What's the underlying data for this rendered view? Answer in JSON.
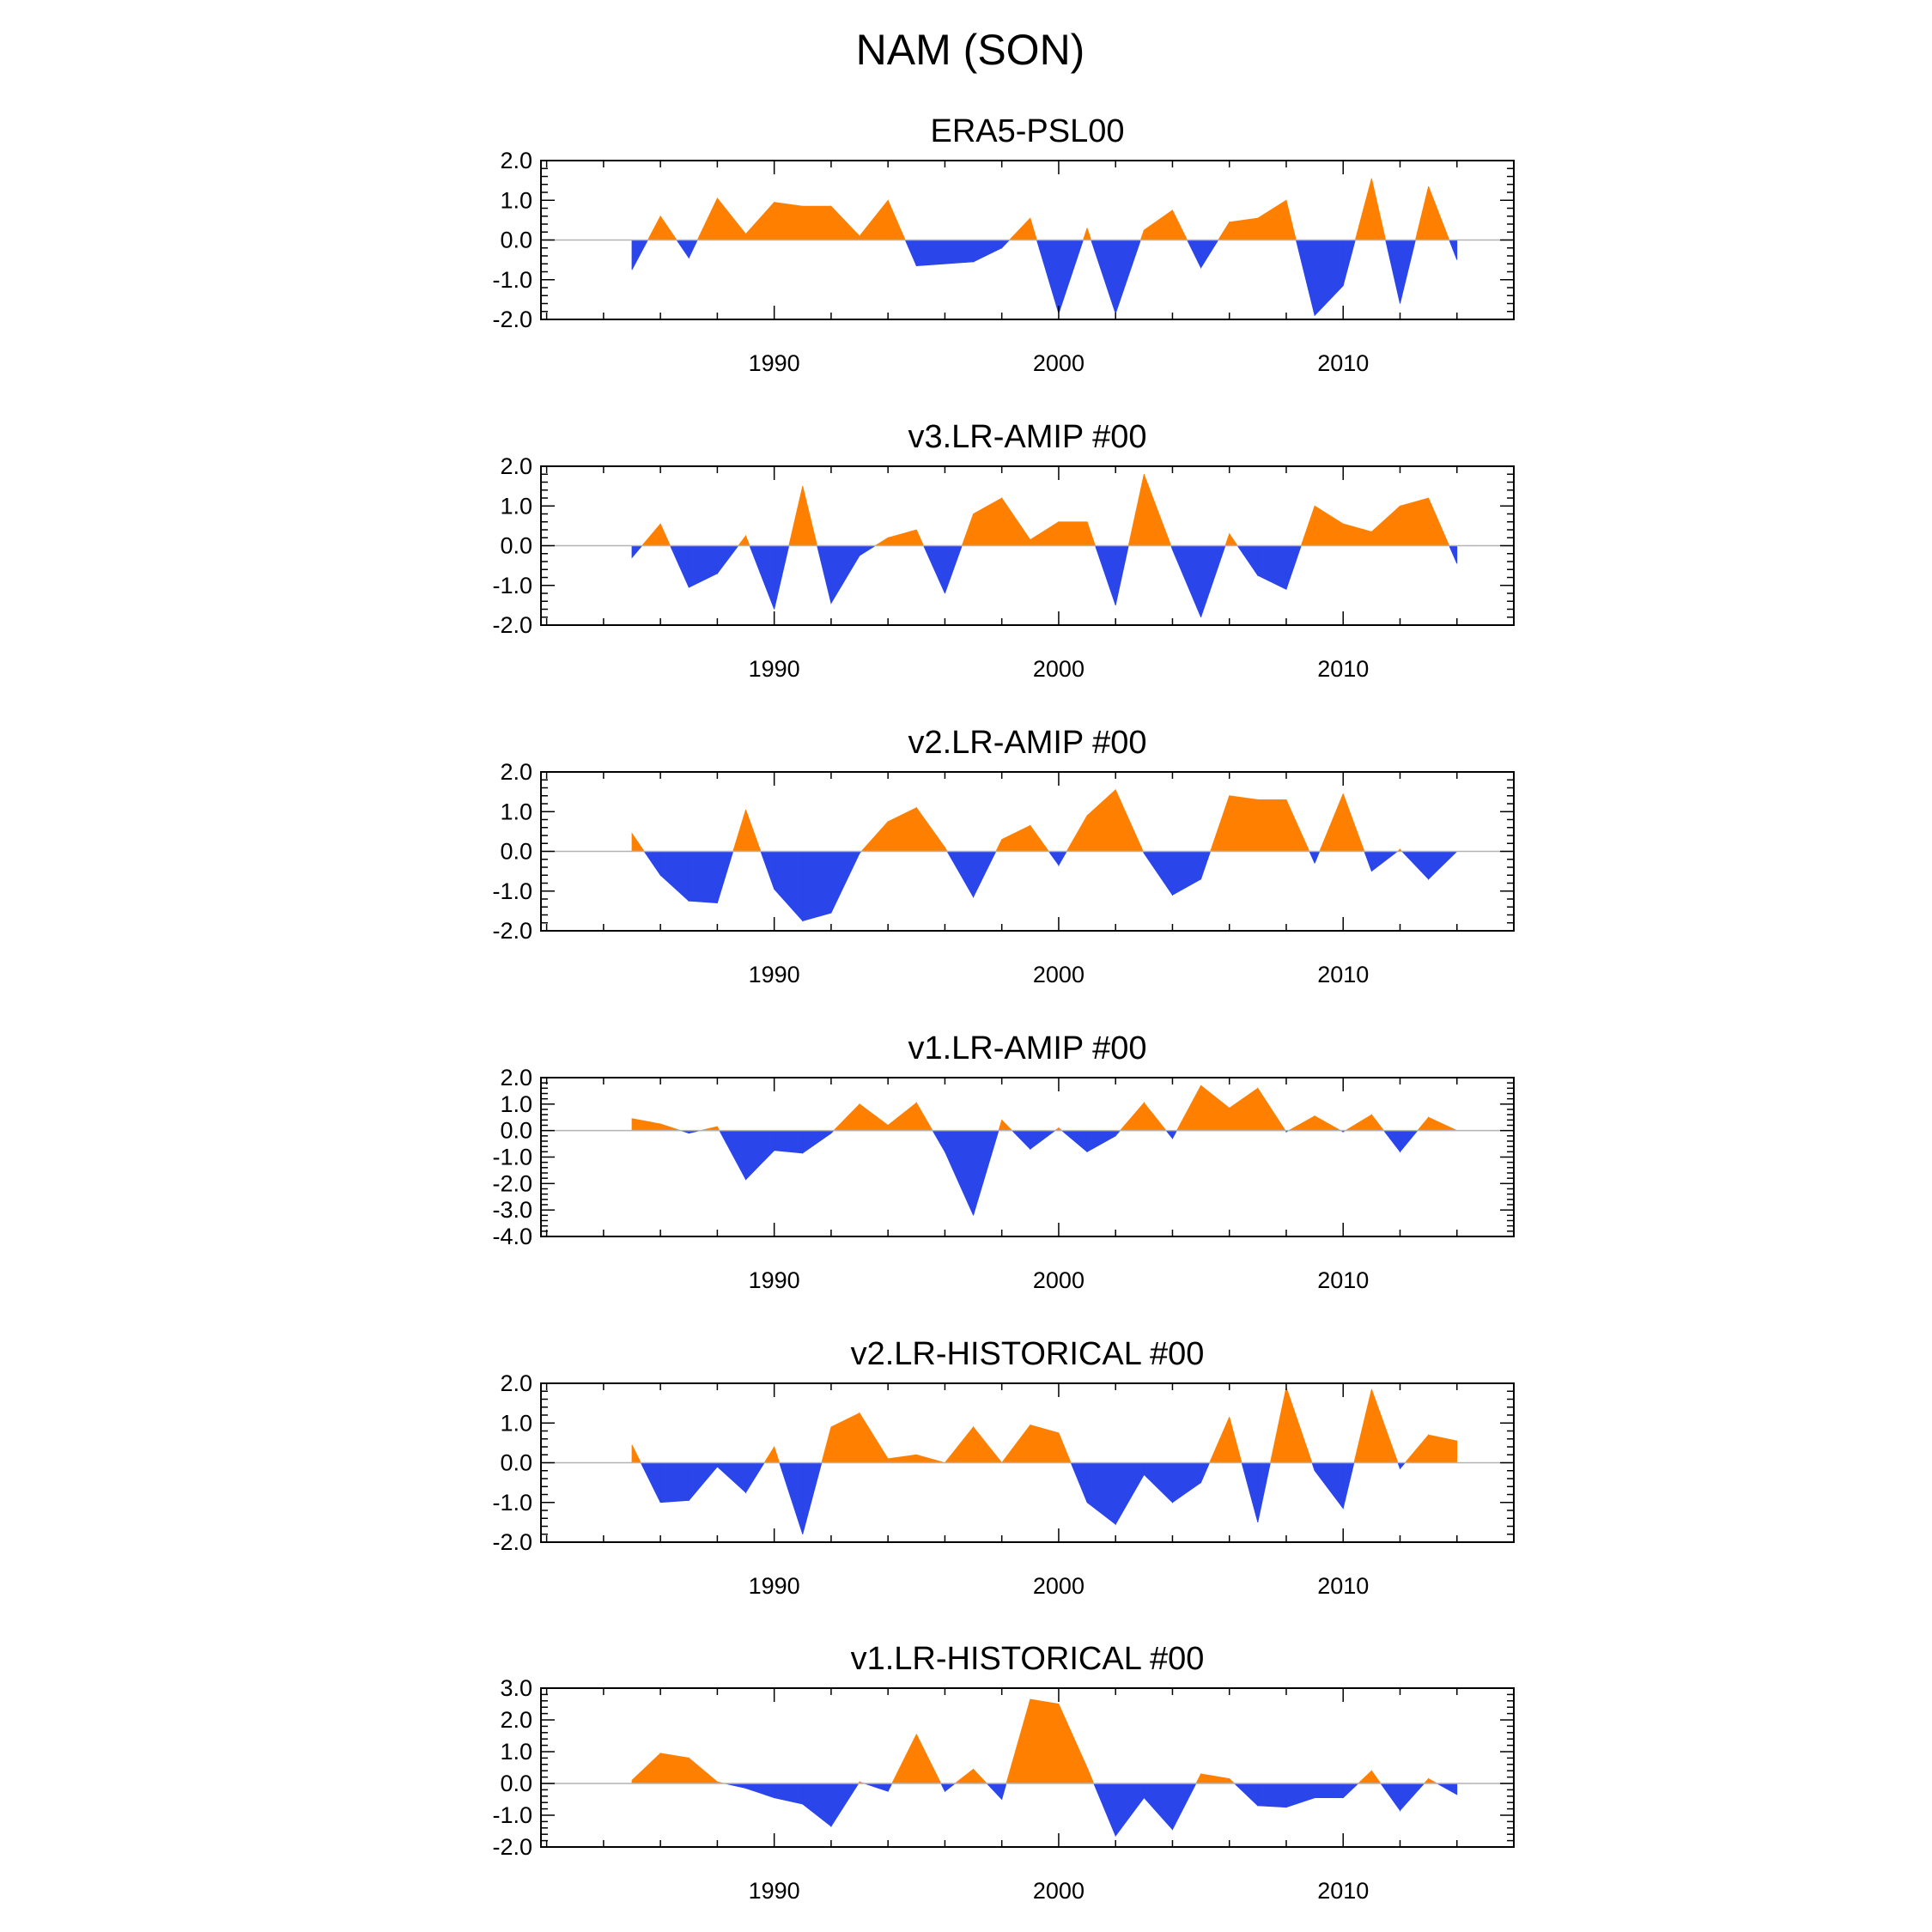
{
  "title": "NAM (SON)",
  "colors": {
    "positive": "#ff8000",
    "negative": "#2a45ea",
    "zero_line": "#b3b3b3"
  },
  "chart_data": [
    {
      "type": "area",
      "title": "ERA5-PSL00",
      "x": [
        1985,
        1986,
        1987,
        1988,
        1989,
        1990,
        1991,
        1992,
        1993,
        1994,
        1995,
        1996,
        1997,
        1998,
        1999,
        2000,
        2001,
        2002,
        2003,
        2004,
        2005,
        2006,
        2007,
        2008,
        2009,
        2010,
        2011,
        2012,
        2013,
        2014
      ],
      "values": [
        -0.75,
        0.6,
        -0.45,
        1.05,
        0.15,
        0.95,
        0.85,
        0.85,
        0.1,
        1.0,
        -0.65,
        -0.6,
        -0.55,
        -0.2,
        0.55,
        -1.85,
        0.3,
        -1.85,
        0.25,
        0.75,
        -0.7,
        0.45,
        0.55,
        1.0,
        -1.9,
        -1.15,
        1.55,
        -1.6,
        1.35,
        -0.5
      ],
      "ylim": [
        -2.0,
        2.0
      ],
      "yticks": [
        "-2.0",
        "-1.0",
        "0.0",
        "1.0",
        "2.0"
      ],
      "xticks": [
        "1990",
        "2000",
        "2010"
      ]
    },
    {
      "type": "area",
      "title": "v3.LR-AMIP  #00",
      "x": [
        1985,
        1986,
        1987,
        1988,
        1989,
        1990,
        1991,
        1992,
        1993,
        1994,
        1995,
        1996,
        1997,
        1998,
        1999,
        2000,
        2001,
        2002,
        2003,
        2004,
        2005,
        2006,
        2007,
        2008,
        2009,
        2010,
        2011,
        2012,
        2013,
        2014
      ],
      "values": [
        -0.3,
        0.55,
        -1.05,
        -0.7,
        0.25,
        -1.6,
        1.5,
        -1.45,
        -0.25,
        0.2,
        0.4,
        -1.2,
        0.8,
        1.2,
        0.15,
        0.6,
        0.6,
        -1.5,
        1.8,
        -0.1,
        -1.8,
        0.3,
        -0.75,
        -1.1,
        1.0,
        0.55,
        0.35,
        1.0,
        1.2,
        -0.45
      ],
      "ylim": [
        -2.0,
        2.0
      ],
      "yticks": [
        "-2.0",
        "-1.0",
        "0.0",
        "1.0",
        "2.0"
      ],
      "xticks": [
        "1990",
        "2000",
        "2010"
      ]
    },
    {
      "type": "area",
      "title": "v2.LR-AMIP  #00",
      "x": [
        1985,
        1986,
        1987,
        1988,
        1989,
        1990,
        1991,
        1992,
        1993,
        1994,
        1995,
        1996,
        1997,
        1998,
        1999,
        2000,
        2001,
        2002,
        2003,
        2004,
        2005,
        2006,
        2007,
        2008,
        2009,
        2010,
        2011,
        2012,
        2013,
        2014
      ],
      "values": [
        0.45,
        -0.6,
        -1.25,
        -1.3,
        1.05,
        -0.95,
        -1.75,
        -1.55,
        -0.05,
        0.75,
        1.1,
        0.1,
        -1.15,
        0.3,
        0.65,
        -0.35,
        0.9,
        1.55,
        -0.05,
        -1.1,
        -0.7,
        1.4,
        1.3,
        1.3,
        -0.3,
        1.45,
        -0.5,
        0.05,
        -0.7,
        0.0
      ],
      "ylim": [
        -2.0,
        2.0
      ],
      "yticks": [
        "-2.0",
        "-1.0",
        "0.0",
        "1.0",
        "2.0"
      ],
      "xticks": [
        "1990",
        "2000",
        "2010"
      ]
    },
    {
      "type": "area",
      "title": "v1.LR-AMIP  #00",
      "x": [
        1985,
        1986,
        1987,
        1988,
        1989,
        1990,
        1991,
        1992,
        1993,
        1994,
        1995,
        1996,
        1997,
        1998,
        1999,
        2000,
        2001,
        2002,
        2003,
        2004,
        2005,
        2006,
        2007,
        2008,
        2009,
        2010,
        2011,
        2012,
        2013,
        2014
      ],
      "values": [
        0.45,
        0.25,
        -0.1,
        0.15,
        -1.85,
        -0.75,
        -0.85,
        -0.1,
        1.0,
        0.2,
        1.05,
        -0.8,
        -3.2,
        0.4,
        -0.7,
        0.1,
        -0.8,
        -0.2,
        1.05,
        -0.3,
        1.7,
        0.85,
        1.6,
        -0.05,
        0.55,
        -0.05,
        0.6,
        -0.8,
        0.5,
        0.0
      ],
      "ylim": [
        -4.0,
        2.0
      ],
      "yticks": [
        "-4.0",
        "-3.0",
        "-2.0",
        "-1.0",
        "0.0",
        "1.0",
        "2.0"
      ],
      "xticks": [
        "1990",
        "2000",
        "2010"
      ]
    },
    {
      "type": "area",
      "title": "v2.LR-HISTORICAL  #00",
      "x": [
        1985,
        1986,
        1987,
        1988,
        1989,
        1990,
        1991,
        1992,
        1993,
        1994,
        1995,
        1996,
        1997,
        1998,
        1999,
        2000,
        2001,
        2002,
        2003,
        2004,
        2005,
        2006,
        2007,
        2008,
        2009,
        2010,
        2011,
        2012,
        2013,
        2014
      ],
      "values": [
        0.45,
        -1.0,
        -0.95,
        -0.1,
        -0.75,
        0.4,
        -1.8,
        0.9,
        1.25,
        0.1,
        0.2,
        0.0,
        0.9,
        0.0,
        0.95,
        0.75,
        -1.0,
        -1.55,
        -0.3,
        -1.0,
        -0.5,
        1.15,
        -1.5,
        1.9,
        -0.2,
        -1.15,
        1.85,
        -0.15,
        0.7,
        0.55
      ],
      "ylim": [
        -2.0,
        2.0
      ],
      "yticks": [
        "-2.0",
        "-1.0",
        "0.0",
        "1.0",
        "2.0"
      ],
      "xticks": [
        "1990",
        "2000",
        "2010"
      ]
    },
    {
      "type": "area",
      "title": "v1.LR-HISTORICAL  #00",
      "x": [
        1985,
        1986,
        1987,
        1988,
        1989,
        1990,
        1991,
        1992,
        1993,
        1994,
        1995,
        1996,
        1997,
        1998,
        1999,
        2000,
        2001,
        2002,
        2003,
        2004,
        2005,
        2006,
        2007,
        2008,
        2009,
        2010,
        2011,
        2012,
        2013,
        2014
      ],
      "values": [
        0.1,
        0.95,
        0.8,
        0.05,
        -0.15,
        -0.45,
        -0.65,
        -1.35,
        0.05,
        -0.25,
        1.55,
        -0.25,
        0.45,
        -0.5,
        2.65,
        2.5,
        0.5,
        -1.65,
        -0.45,
        -1.45,
        0.3,
        0.15,
        -0.7,
        -0.75,
        -0.45,
        -0.45,
        0.4,
        -0.85,
        0.15,
        -0.35
      ],
      "ylim": [
        -2.0,
        3.0
      ],
      "yticks": [
        "-2.0",
        "-1.0",
        "0.0",
        "1.0",
        "2.0",
        "3.0"
      ],
      "xticks": [
        "1990",
        "2000",
        "2010"
      ]
    }
  ]
}
